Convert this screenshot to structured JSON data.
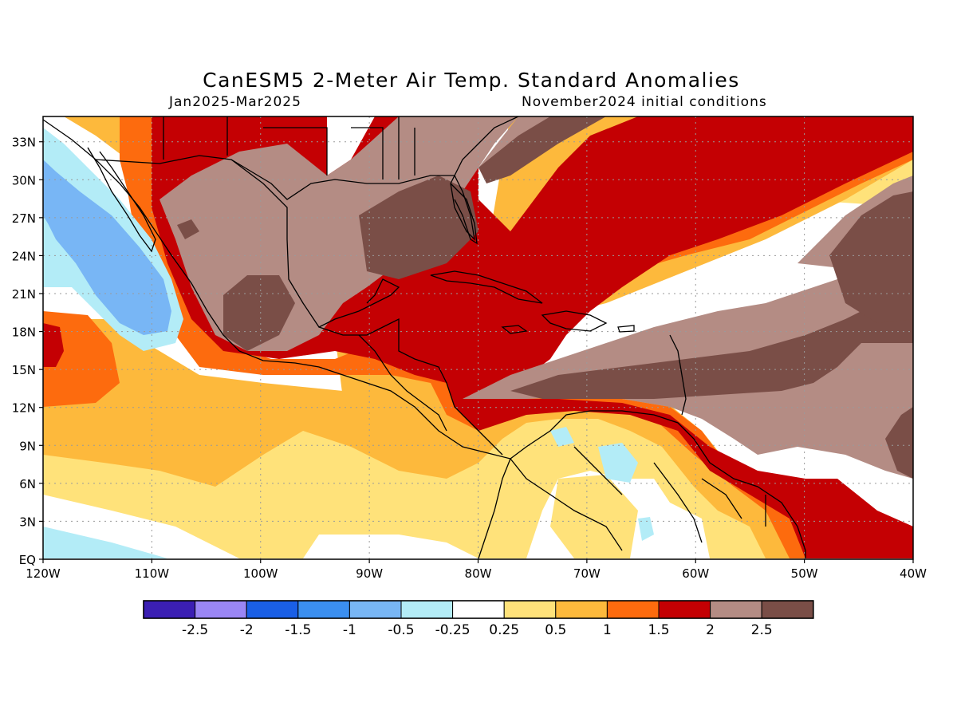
{
  "header": {
    "title": "CanESM5 2-Meter Air Temp. Standard Anomalies",
    "period": "Jan2025-Mar2025",
    "init": "November2024 initial conditions"
  },
  "axes": {
    "lat_ticks": [
      "33N",
      "30N",
      "27N",
      "24N",
      "21N",
      "18N",
      "15N",
      "12N",
      "9N",
      "6N",
      "3N",
      "EQ"
    ],
    "lon_ticks": [
      "120W",
      "110W",
      "100W",
      "90W",
      "80W",
      "70W",
      "60W",
      "50W",
      "40W"
    ]
  },
  "legend": {
    "colors": [
      "#3b1fb3",
      "#9a86f5",
      "#1a5fe6",
      "#3b8ff0",
      "#78b6f5",
      "#b3ecf7",
      "#ffffff",
      "#ffe27a",
      "#fdb93c",
      "#fd6b0e",
      "#c40003",
      "#b48c84",
      "#7a4e47"
    ],
    "labels": [
      "-2.5",
      "-2",
      "-1.5",
      "-1",
      "-0.5",
      "-0.25",
      "0.25",
      "0.5",
      "1",
      "1.5",
      "2",
      "2.5"
    ]
  },
  "map_colors": {
    "frame": "#000000",
    "coast": "#000000",
    "grid": "#9a9a9a"
  }
}
